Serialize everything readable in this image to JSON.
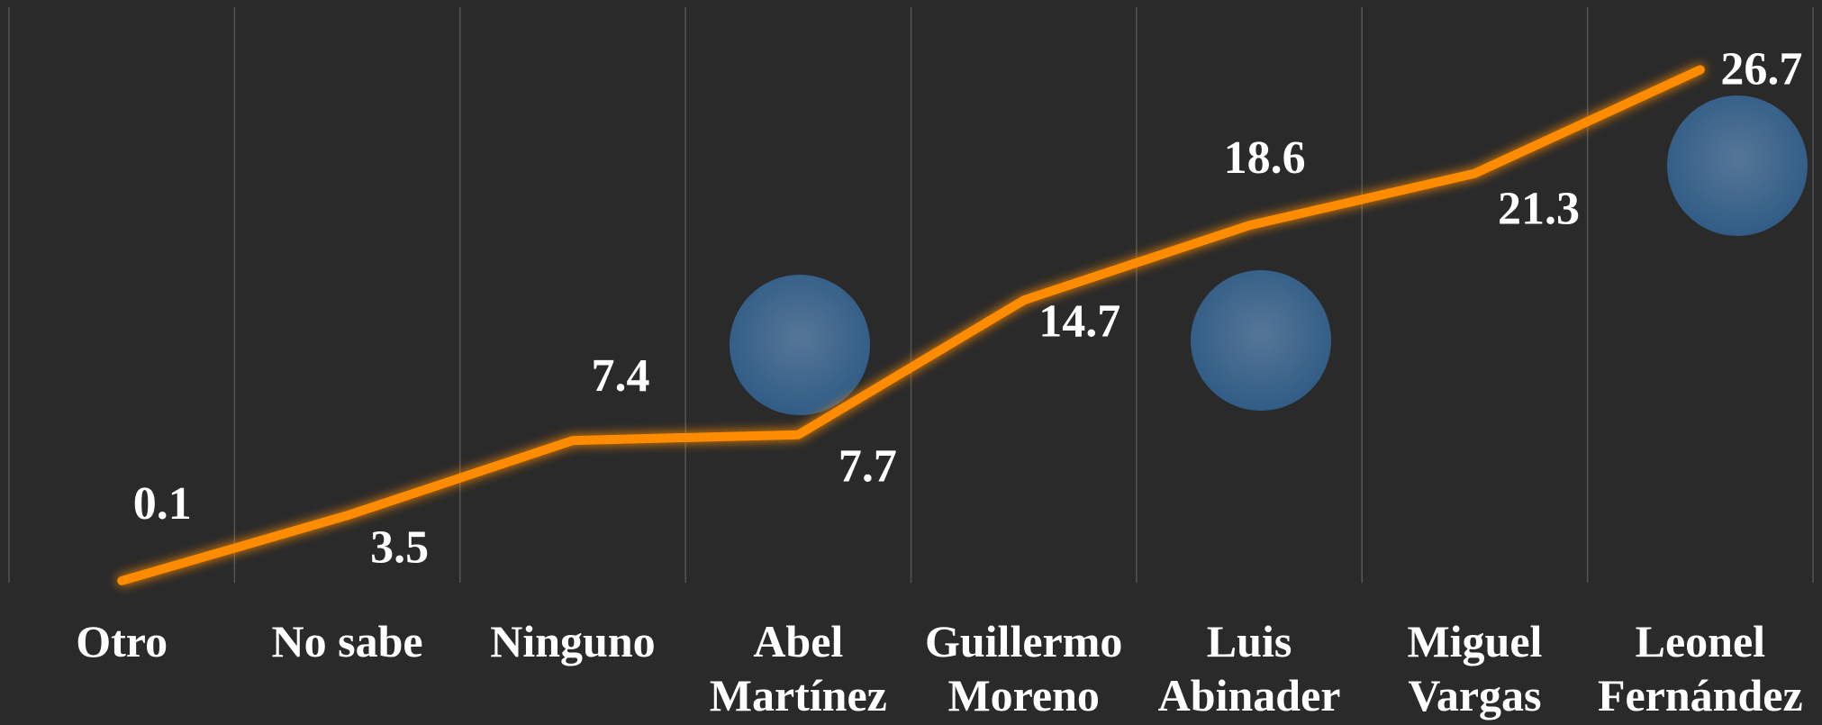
{
  "chart_data": {
    "type": "line",
    "categories": [
      "Otro",
      "No sabe",
      "Ninguno",
      "Abel Martínez",
      "Guillermo Moreno",
      "Luis Abinader",
      "Miguel Vargas",
      "Leonel Fernández"
    ],
    "values": [
      0.1,
      3.5,
      7.4,
      7.7,
      14.7,
      18.6,
      21.3,
      26.7
    ],
    "color": "#ff8c00",
    "ylim": [
      0,
      30
    ]
  }
}
